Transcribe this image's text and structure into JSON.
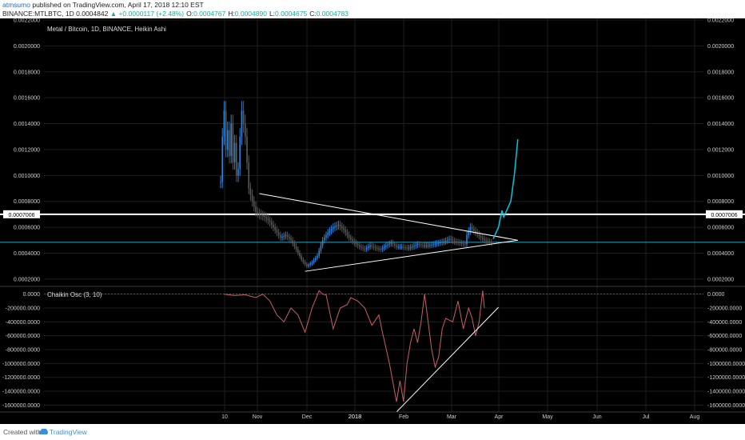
{
  "header": {
    "author": "atmsumo",
    "published": "published on TradingView.com, April 17, 2018 12:10 EST",
    "symbol": "BINANCE:MTLBTC, 1D",
    "last": "0.0004842",
    "change": "+0.0000117 (+2.48%)",
    "o_label": "O:",
    "o_value": "0.0004767",
    "h_label": "H:",
    "h_value": "0.0004890",
    "l_label": "L:",
    "l_value": "0.0004675",
    "c_label": "C:",
    "c_value": "0.0004783"
  },
  "footer": {
    "created": "Created with",
    "brand": "TradingView"
  },
  "colors": {
    "background": "#000000",
    "grid": "#1e1e1e",
    "candle_up": "#2e86de",
    "candle_down": "#5a5a5a",
    "projection": "#00c8e0",
    "trendline": "#ffffff",
    "price_line": "#29a6c9",
    "level_line": "#ffffff",
    "oscillator": "#c96060"
  },
  "chart_data": [
    {
      "type": "candlestick",
      "title": "Metal / Bitcoin, 1D, BINANCE, Heikin Ashi",
      "x_ticks": [
        "10",
        "Nov",
        "Dec",
        "2018",
        "Feb",
        "Mar",
        "Apr",
        "May",
        "Jun",
        "Jul",
        "Aug"
      ],
      "y_ticks": [
        "0.0002000",
        "0.0004000",
        "0.0006000",
        "0.0008000",
        "0.0010000",
        "0.0012000",
        "0.0014000",
        "0.0016000",
        "0.0018000",
        "0.0020000",
        "0.0022000"
      ],
      "ylim": [
        0.00015,
        0.0022
      ],
      "price_marker": "0.0007006",
      "price_level": 0.0007006,
      "current_price": 0.0004842,
      "series": [
        {
          "name": "Close",
          "x_days": [
            0,
            1,
            2,
            3,
            4,
            5,
            6,
            7,
            8,
            9,
            10,
            11,
            12,
            13,
            14,
            15,
            16,
            18,
            20,
            22,
            25,
            28,
            31,
            34,
            37,
            40,
            43,
            46,
            49,
            52,
            55,
            58,
            61,
            64,
            67,
            70,
            73,
            76,
            79,
            82,
            85,
            88,
            91,
            94,
            97,
            100,
            103,
            106,
            109,
            112,
            115,
            118,
            121,
            124,
            127,
            130,
            133,
            136,
            139,
            140,
            142,
            145,
            148,
            150,
            152,
            154
          ],
          "values": [
            0.00095,
            0.0013,
            0.0015,
            0.0012,
            0.00135,
            0.00115,
            0.0014,
            0.0011,
            0.00125,
            0.001,
            0.00105,
            0.0013,
            0.0015,
            0.0014,
            0.0013,
            0.0011,
            0.0009,
            0.0008,
            0.00072,
            0.0007,
            0.00068,
            0.00064,
            0.00058,
            0.00052,
            0.00054,
            0.0005,
            0.00043,
            0.00035,
            0.0003,
            0.00033,
            0.00038,
            0.0005,
            0.00056,
            0.0006,
            0.00062,
            0.00058,
            0.00052,
            0.00048,
            0.00045,
            0.00043,
            0.00046,
            0.00044,
            0.00043,
            0.00046,
            0.00048,
            0.00045,
            0.00045,
            0.00044,
            0.00045,
            0.00047,
            0.00046,
            0.00046,
            0.00047,
            0.00048,
            0.00049,
            0.00051,
            0.00049,
            0.00048,
            0.00047,
            0.00054,
            0.0006,
            0.00056,
            0.00052,
            0.0005,
            0.00049,
            0.00048
          ]
        }
      ],
      "annotations": {
        "triangle_upper": [
          [
            22,
            0.00086
          ],
          [
            169,
            0.0005
          ]
        ],
        "triangle_lower": [
          [
            48,
            0.00026
          ],
          [
            169,
            0.0005
          ]
        ],
        "projection": [
          [
            155,
            0.00051
          ],
          [
            158,
            0.0006
          ],
          [
            160,
            0.00073
          ],
          [
            161,
            0.00068
          ],
          [
            165,
            0.0008
          ],
          [
            167,
            0.001
          ],
          [
            169,
            0.00128
          ]
        ]
      }
    },
    {
      "type": "line",
      "title": "Chaikin Osc (3, 10)",
      "x_ticks": [
        "10",
        "Nov",
        "Dec",
        "2018",
        "Feb",
        "Mar",
        "Apr",
        "May",
        "Jun",
        "Jul",
        "Aug"
      ],
      "y_ticks": [
        "-1600000.0000",
        "-1400000.0000",
        "-1200000.0000",
        "-1000000.0000",
        "-800000.0000",
        "-600000.0000",
        "-400000.0000",
        "-200000.0000",
        "0.0000"
      ],
      "ylim": [
        -1700000,
        100000
      ],
      "series": [
        {
          "name": "Chaikin Osc",
          "x_days": [
            2,
            8,
            14,
            20,
            24,
            28,
            32,
            36,
            40,
            44,
            48,
            52,
            56,
            58,
            60,
            64,
            68,
            72,
            74,
            78,
            82,
            86,
            90,
            92,
            96,
            100,
            102,
            104,
            106,
            108,
            110,
            112,
            114,
            116,
            118,
            120,
            122,
            124,
            126,
            128,
            132,
            135,
            138,
            141,
            143,
            145,
            147,
            149,
            150
          ],
          "values": [
            0,
            -20000,
            -10000,
            -50000,
            0,
            -100000,
            -300000,
            -400000,
            -200000,
            -300000,
            -550000,
            -200000,
            50000,
            0,
            -10000,
            -500000,
            -200000,
            -150000,
            -50000,
            -100000,
            -200000,
            -450000,
            -300000,
            -550000,
            -1000000,
            -1550000,
            -1250000,
            -1550000,
            -1000000,
            -700000,
            -500000,
            -700000,
            -400000,
            0,
            -400000,
            -800000,
            -1050000,
            -900000,
            -500000,
            -350000,
            -400000,
            -100000,
            -500000,
            -200000,
            -350000,
            -600000,
            -400000,
            50000,
            -200000
          ]
        }
      ],
      "annotations": {
        "trendline": [
          [
            100,
            -1700000
          ],
          [
            158,
            -190000
          ]
        ]
      }
    }
  ]
}
